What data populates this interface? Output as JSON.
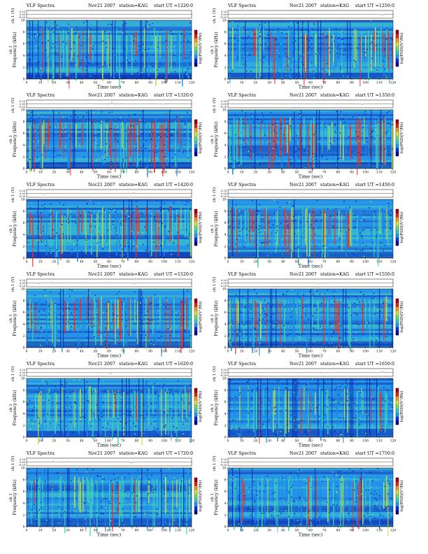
{
  "chart_data": [
    {
      "type": "heatmap",
      "title": "VLF Spectra",
      "date": "Nov21 2007",
      "station": "station=KAG",
      "start_ut": "start UT =1220:0",
      "upper_ylabel": "ch 1 (V)",
      "upper_yticks": [
        "0.20",
        "0.00",
        "-0.20"
      ],
      "ylabel": "Frequency (kHz)",
      "ylabel_prefix": "ch 1",
      "yticks": [
        0,
        2,
        4,
        6,
        8,
        10
      ],
      "ylim": [
        0,
        10
      ],
      "xlabel": "Time (sec)",
      "xticks": [
        0,
        10,
        20,
        30,
        40,
        50,
        60,
        70,
        80,
        90,
        100,
        110,
        120
      ],
      "xlim": [
        0,
        120
      ],
      "colorbar_label": "log(PSD)(V²/Hz)"
    },
    {
      "type": "heatmap",
      "title": "VLF Spectra",
      "date": "Nov21 2007",
      "station": "station=KAG",
      "start_ut": "start UT =1250:0",
      "upper_ylabel": "ch 1 (V)",
      "upper_yticks": [
        "0.20",
        "0.00",
        "-0.20"
      ],
      "ylabel": "Frequency (kHz)",
      "ylabel_prefix": "ch 1",
      "yticks": [
        0,
        2,
        4,
        6,
        8,
        10
      ],
      "ylim": [
        0,
        10
      ],
      "xlabel": "Time (sec)",
      "xticks": [
        0,
        10,
        20,
        30,
        40,
        50,
        60,
        70,
        80,
        90,
        100,
        110,
        120
      ],
      "xlim": [
        0,
        120
      ],
      "colorbar_label": "log(PSD)(V²/Hz)"
    },
    {
      "type": "heatmap",
      "title": "VLF Spectra",
      "date": "Nov21 2007",
      "station": "station=KAG",
      "start_ut": "start UT =1320:0",
      "upper_ylabel": "ch 1 (V)",
      "upper_yticks": [
        "0.20",
        "0.00",
        "-0.20"
      ],
      "ylabel": "Frequency (kHz)",
      "ylabel_prefix": "ch 1",
      "yticks": [
        0,
        2,
        4,
        6,
        8,
        10
      ],
      "ylim": [
        0,
        10
      ],
      "xlabel": "Time (sec)",
      "xticks": [
        0,
        10,
        20,
        30,
        40,
        50,
        60,
        70,
        80,
        90,
        100,
        110,
        120
      ],
      "xlim": [
        0,
        120
      ],
      "colorbar_label": "log(PSD)(V²/Hz)"
    },
    {
      "type": "heatmap",
      "title": "VLF Spectra",
      "date": "Nov21 2007",
      "station": "station=KAG",
      "start_ut": "start UT =1350:0",
      "upper_ylabel": "ch 1 (V)",
      "upper_yticks": [
        "0.20",
        "0.00",
        "-0.20"
      ],
      "ylabel": "Frequency (kHz)",
      "ylabel_prefix": "ch 1",
      "yticks": [
        0,
        2,
        4,
        6,
        8,
        10
      ],
      "ylim": [
        0,
        10
      ],
      "xlabel": "Time (sec)",
      "xticks": [
        0,
        10,
        20,
        30,
        40,
        50,
        60,
        70,
        80,
        90,
        100,
        110,
        120
      ],
      "xlim": [
        0,
        120
      ],
      "colorbar_label": "log(PSD)(V²/Hz)"
    },
    {
      "type": "heatmap",
      "title": "VLF Spectra",
      "date": "Nov21 2007",
      "station": "station=KAG",
      "start_ut": "start UT =1420:0",
      "upper_ylabel": "ch 1 (V)",
      "upper_yticks": [
        "0.20",
        "0.00",
        "-0.20"
      ],
      "ylabel": "Frequency (kHz)",
      "ylabel_prefix": "ch 1",
      "yticks": [
        0,
        2,
        4,
        6,
        8,
        10
      ],
      "ylim": [
        0,
        10
      ],
      "xlabel": "Time (sec)",
      "xticks": [
        0,
        10,
        20,
        30,
        40,
        50,
        60,
        70,
        80,
        90,
        100,
        110,
        120
      ],
      "xlim": [
        0,
        120
      ],
      "colorbar_label": "log(PSD)(V²/Hz)"
    },
    {
      "type": "heatmap",
      "title": "VLF Spectra",
      "date": "Nov21 2007",
      "station": "station=KAG",
      "start_ut": "start UT =1450:0",
      "upper_ylabel": "ch 1 (V)",
      "upper_yticks": [
        "0.20",
        "0.00",
        "-0.20"
      ],
      "ylabel": "Frequency (kHz)",
      "ylabel_prefix": "ch 1",
      "yticks": [
        0,
        2,
        4,
        6,
        8,
        10
      ],
      "ylim": [
        0,
        10
      ],
      "xlabel": "Time (sec)",
      "xticks": [
        0,
        10,
        20,
        30,
        40,
        50,
        60,
        70,
        80,
        90,
        100,
        110,
        120
      ],
      "xlim": [
        0,
        120
      ],
      "colorbar_label": "log(PSD)(V²/Hz)"
    },
    {
      "type": "heatmap",
      "title": "VLF Spectra",
      "date": "Nov21 2007",
      "station": "station=KAG",
      "start_ut": "start UT =1520:0",
      "upper_ylabel": "ch 1 (V)",
      "upper_yticks": [
        "0.20",
        "0.00",
        "-0.20"
      ],
      "ylabel": "Frequency (kHz)",
      "ylabel_prefix": "ch 1",
      "yticks": [
        0,
        2,
        4,
        6,
        8,
        10
      ],
      "ylim": [
        0,
        10
      ],
      "xlabel": "Time (sec)",
      "xticks": [
        0,
        10,
        20,
        30,
        40,
        50,
        60,
        70,
        80,
        90,
        100,
        110,
        120
      ],
      "xlim": [
        0,
        120
      ],
      "colorbar_label": "log(PSD)(V²/Hz)"
    },
    {
      "type": "heatmap",
      "title": "VLF Spectra",
      "date": "Nov21 2007",
      "station": "station=KAG",
      "start_ut": "start UT =1550:0",
      "upper_ylabel": "ch 1 (V)",
      "upper_yticks": [
        "0.20",
        "0.00",
        "-0.20"
      ],
      "ylabel": "Frequency (kHz)",
      "ylabel_prefix": "ch 1",
      "yticks": [
        0,
        2,
        4,
        6,
        8,
        10
      ],
      "ylim": [
        0,
        10
      ],
      "xlabel": "Time (sec)",
      "xticks": [
        0,
        10,
        20,
        30,
        40,
        50,
        60,
        70,
        80,
        90,
        100,
        110,
        120
      ],
      "xlim": [
        0,
        120
      ],
      "colorbar_label": "log(PSD)(V²/Hz)"
    },
    {
      "type": "heatmap",
      "title": "VLF Spectra",
      "date": "Nov21 2007",
      "station": "station=KAG",
      "start_ut": "start UT =1620:0",
      "upper_ylabel": "ch 1 (V)",
      "upper_yticks": [
        "0.20",
        "0.00",
        "-0.20"
      ],
      "ylabel": "Frequency (kHz)",
      "ylabel_prefix": "ch 1",
      "yticks": [
        0,
        2,
        4,
        6,
        8,
        10
      ],
      "ylim": [
        0,
        10
      ],
      "xlabel": "Time (sec)",
      "xticks": [
        0,
        10,
        20,
        30,
        40,
        50,
        60,
        70,
        80,
        90,
        100,
        110,
        120
      ],
      "xlim": [
        0,
        120
      ],
      "colorbar_label": "log(PSD)(V²/Hz)"
    },
    {
      "type": "heatmap",
      "title": "VLF Spectra",
      "date": "Nov21 2007",
      "station": "station=KAG",
      "start_ut": "start UT =1650:0",
      "upper_ylabel": "ch 1 (V)",
      "upper_yticks": [
        "0.20",
        "0.00",
        "-0.20"
      ],
      "ylabel": "Frequency (kHz)",
      "ylabel_prefix": "ch 1",
      "yticks": [
        0,
        2,
        4,
        6,
        8,
        10
      ],
      "ylim": [
        0,
        10
      ],
      "xlabel": "Time (sec)",
      "xticks": [
        0,
        10,
        20,
        30,
        40,
        50,
        60,
        70,
        80,
        90,
        100,
        110,
        120
      ],
      "xlim": [
        0,
        120
      ],
      "colorbar_label": "log(PSD)(V²/Hz)"
    },
    {
      "type": "heatmap",
      "title": "VLF Spectra",
      "date": "Nov21 2007",
      "station": "station=KAG",
      "start_ut": "start UT =1720:0",
      "upper_ylabel": "ch 1 (V)",
      "upper_yticks": [
        "0.20",
        "0.00",
        "-0.20"
      ],
      "ylabel": "Frequency (kHz)",
      "ylabel_prefix": "ch 1",
      "yticks": [
        0,
        2,
        4,
        6,
        8,
        10
      ],
      "ylim": [
        0,
        10
      ],
      "xlabel": "Time (sec)",
      "xticks": [
        0,
        10,
        20,
        30,
        40,
        50,
        60,
        70,
        80,
        90,
        100,
        110,
        120
      ],
      "xlim": [
        0,
        120
      ],
      "colorbar_label": "log(PSD)(V²/Hz)"
    },
    {
      "type": "heatmap",
      "title": "VLF Spectra",
      "date": "Nov21 2007",
      "station": "station=KAG",
      "start_ut": "start UT =1750:0",
      "upper_ylabel": "ch 1 (V)",
      "upper_yticks": [
        "0.20",
        "0.00",
        "-0.20"
      ],
      "ylabel": "Frequency (kHz)",
      "ylabel_prefix": "ch 1",
      "yticks": [
        0,
        2,
        4,
        6,
        8,
        10
      ],
      "ylim": [
        0,
        10
      ],
      "xlabel": "Time (sec)",
      "xticks": [
        0,
        10,
        20,
        30,
        40,
        50,
        60,
        70,
        80,
        90,
        100,
        110,
        120
      ],
      "xlim": [
        0,
        120
      ],
      "colorbar_label": "log(PSD)(V²/Hz)"
    }
  ],
  "colors": {
    "low": "#0a2ab0",
    "mid_low": "#1a8ce8",
    "mid": "#3fd0b8",
    "mid_high": "#b8e050",
    "high": "#e83020"
  },
  "colorbar_colors": [
    "#00008c",
    "#0030e0",
    "#1a9cf0",
    "#30d0c0",
    "#6ee070",
    "#d8e840",
    "#f0a020",
    "#e02818",
    "#a00010"
  ]
}
